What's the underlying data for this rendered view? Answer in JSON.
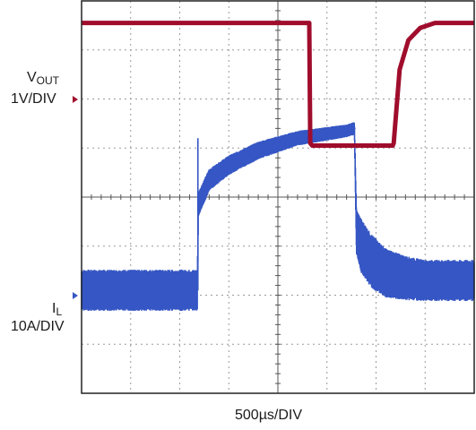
{
  "labels": {
    "vout_main": "V",
    "vout_sub": "OUT",
    "vout_scale": "1V/DIV",
    "il_main": "I",
    "il_sub": "L",
    "il_scale": "10A/DIV",
    "time_scale": "500µs/DIV"
  },
  "colors": {
    "vout": "#a00d2c",
    "il": "#3556c4",
    "grid": "#9a9a9a",
    "frame": "#222222"
  },
  "chart_data": {
    "type": "line",
    "title": "",
    "xlabel": "500µs/DIV",
    "grid": true,
    "divisions": {
      "x": 8,
      "y": 8
    },
    "x_unit": "µs",
    "xlim": [
      0,
      4000
    ],
    "series": [
      {
        "name": "VOUT",
        "scale": "1V/DIV",
        "y_unit": "div",
        "x": [
          0,
          2320,
          2330,
          2350,
          3170,
          3180,
          3240,
          3330,
          3450,
          3600,
          4000
        ],
        "y": [
          7.55,
          7.55,
          5.1,
          5.05,
          5.05,
          5.1,
          6.6,
          7.2,
          7.45,
          7.55,
          7.55
        ]
      },
      {
        "name": "IL",
        "scale": "10A/DIV",
        "y_unit": "div",
        "x_center": [
          0,
          1180,
          1190,
          1300,
          1500,
          1800,
          2200,
          2700,
          2780,
          2800,
          2850,
          2950,
          3100,
          3300,
          3500,
          4000
        ],
        "y_center": [
          2.1,
          2.1,
          3.85,
          4.35,
          4.65,
          4.95,
          5.2,
          5.35,
          5.4,
          3.3,
          3.0,
          2.7,
          2.45,
          2.35,
          2.3,
          2.3
        ],
        "band_halfwidth": [
          0.42,
          0.42,
          0.25,
          0.22,
          0.2,
          0.18,
          0.15,
          0.13,
          0.13,
          0.45,
          0.55,
          0.55,
          0.5,
          0.45,
          0.42,
          0.42
        ],
        "spikes": [
          {
            "x": 1185,
            "y": 5.2
          },
          {
            "x": 2790,
            "y": 5.4
          }
        ]
      }
    ]
  }
}
